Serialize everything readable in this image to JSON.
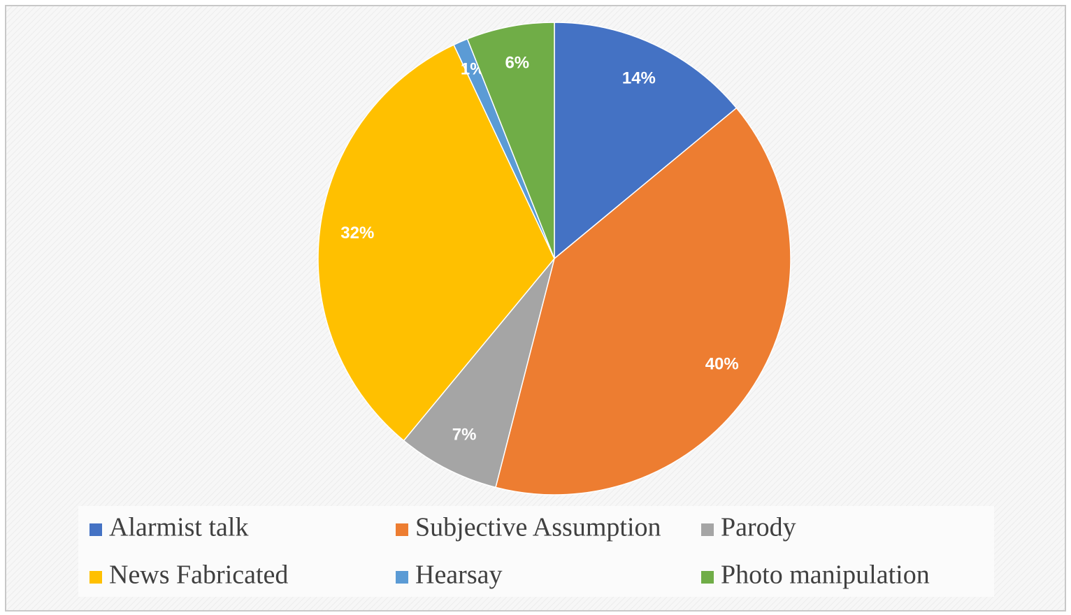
{
  "chart_data": {
    "type": "pie",
    "categories": [
      "Alarmist talk",
      "Subjective Assumption",
      "Parody",
      "News Fabricated",
      "Hearsay",
      "Photo manipulation"
    ],
    "values": [
      14,
      40,
      7,
      32,
      1,
      6
    ],
    "value_labels": [
      "14%",
      "40%",
      "7%",
      "32%",
      "1%",
      "6%"
    ],
    "colors": [
      "#4472c4",
      "#ed7d31",
      "#a5a5a5",
      "#ffc000",
      "#5b9bd5",
      "#70ad47"
    ],
    "legend": "bottom"
  }
}
